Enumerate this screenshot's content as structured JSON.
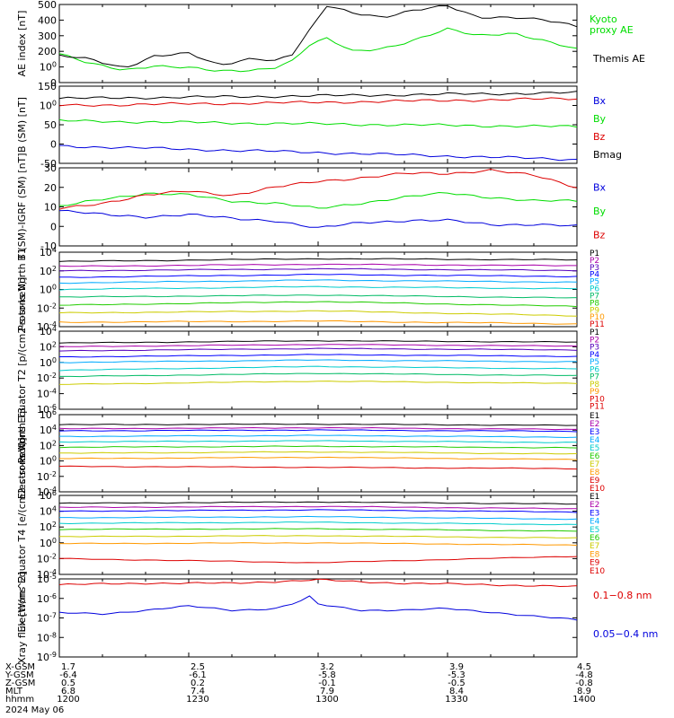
{
  "chart_data": [
    {
      "type": "line",
      "ylabel": "AE index [nT]",
      "ylim": [
        0,
        500
      ],
      "yticks": [
        "0",
        "100",
        "200",
        "300",
        "400",
        "500"
      ],
      "series": [
        {
          "name": "Kyoto proxy AE",
          "color": "#00dd00",
          "x": [
            "12:00",
            "12:07",
            "12:15",
            "12:22",
            "12:30",
            "12:37",
            "12:45",
            "12:50",
            "12:54",
            "12:58",
            "13:02",
            "13:08",
            "13:15",
            "13:22",
            "13:30",
            "13:37",
            "13:45",
            "13:52",
            "14:00"
          ],
          "values": [
            185,
            120,
            80,
            110,
            95,
            70,
            80,
            100,
            140,
            240,
            280,
            200,
            220,
            270,
            340,
            300,
            320,
            270,
            210
          ]
        },
        {
          "name": "Themis AE",
          "color": "#000000",
          "x": [
            "12:00",
            "12:07",
            "12:15",
            "12:22",
            "12:30",
            "12:37",
            "12:45",
            "12:50",
            "12:54",
            "12:58",
            "13:02",
            "13:08",
            "13:15",
            "13:22",
            "13:30",
            "13:37",
            "13:45",
            "13:52",
            "14:00"
          ],
          "values": [
            170,
            150,
            95,
            170,
            185,
            110,
            160,
            140,
            180,
            330,
            490,
            450,
            420,
            460,
            490,
            420,
            420,
            400,
            360
          ]
        }
      ]
    },
    {
      "type": "line",
      "ylabel": "B (SM) [nT]",
      "ylim": [
        -50,
        150
      ],
      "yticks": [
        "-50",
        "0",
        "50",
        "100",
        "150"
      ],
      "series": [
        {
          "name": "Bx",
          "color": "#000000",
          "x": [
            "12:00",
            "13:00",
            "14:00"
          ],
          "values": [
            118,
            125,
            133
          ]
        },
        {
          "name": "By",
          "color": "#00dd00",
          "x": [
            "12:00",
            "13:00",
            "14:00"
          ],
          "values": [
            60,
            52,
            45
          ]
        },
        {
          "name": "Bz",
          "color": "#dd0000",
          "x": [
            "12:00",
            "13:00",
            "14:00"
          ],
          "values": [
            100,
            108,
            118
          ]
        },
        {
          "name": "Bmag",
          "color": "#0000dd",
          "x": [
            "12:00",
            "13:00",
            "14:00"
          ],
          "values": [
            -5,
            -22,
            -40
          ]
        }
      ]
    },
    {
      "type": "line",
      "ylabel": "B (SM)-IGRF (SM) [nT]",
      "ylim": [
        -10,
        30
      ],
      "yticks": [
        "-10",
        "0",
        "10",
        "20",
        "30"
      ],
      "series": [
        {
          "name": "Bx",
          "color": "#0000dd",
          "x": [
            "12:00",
            "12:10",
            "12:20",
            "12:30",
            "12:40",
            "12:50",
            "13:00",
            "13:10",
            "13:20",
            "13:30",
            "13:40",
            "13:50",
            "14:00"
          ],
          "values": [
            8,
            6,
            5,
            6,
            4,
            3,
            -1,
            2,
            3,
            3,
            1,
            1,
            0
          ]
        },
        {
          "name": "By",
          "color": "#00dd00",
          "x": [
            "12:00",
            "12:10",
            "12:20",
            "12:30",
            "12:40",
            "12:50",
            "13:00",
            "13:10",
            "13:20",
            "13:30",
            "13:40",
            "13:50",
            "14:00"
          ],
          "values": [
            10,
            14,
            17,
            16,
            13,
            12,
            9,
            12,
            15,
            17,
            15,
            13,
            13
          ]
        },
        {
          "name": "Bz",
          "color": "#dd0000",
          "x": [
            "12:00",
            "12:10",
            "12:20",
            "12:30",
            "12:40",
            "12:50",
            "13:00",
            "13:10",
            "13:20",
            "13:30",
            "13:40",
            "13:50",
            "14:00"
          ],
          "values": [
            9,
            12,
            16,
            18,
            16,
            20,
            23,
            25,
            27,
            27,
            29,
            26,
            20
          ]
        }
      ]
    },
    {
      "type": "line",
      "ylabel": "Protons North T1",
      "yscale": "log",
      "ylim": [
        0.0001,
        10000
      ],
      "yticks": [
        "10-4",
        "10-2",
        "100",
        "102",
        "104"
      ],
      "series": [
        {
          "name": "P1",
          "color": "#000000",
          "values": [
            1000,
            2000,
            1500
          ]
        },
        {
          "name": "P2",
          "color": "#aa00aa",
          "values": [
            300,
            500,
            350
          ]
        },
        {
          "name": "P3",
          "color": "#5500bb",
          "values": [
            100,
            160,
            110
          ]
        },
        {
          "name": "P4",
          "color": "#0000ff",
          "values": [
            20,
            40,
            25
          ]
        },
        {
          "name": "P5",
          "color": "#00aaff",
          "values": [
            5,
            10,
            6
          ]
        },
        {
          "name": "P6",
          "color": "#00cccc",
          "values": [
            1,
            2,
            1.2
          ]
        },
        {
          "name": "P7",
          "color": "#00bb66",
          "values": [
            0.15,
            0.25,
            0.12
          ]
        },
        {
          "name": "P8",
          "color": "#22cc00",
          "values": [
            0.02,
            0.05,
            0.015
          ]
        },
        {
          "name": "P9",
          "color": "#cccc00",
          "values": [
            0.003,
            0.005,
            0.0015
          ]
        },
        {
          "name": "P10",
          "color": "#ff9900",
          "values": [
            0.0003,
            0.0004,
            0.0002
          ]
        },
        {
          "name": "P11",
          "color": "#dd0000",
          "values": []
        }
      ]
    },
    {
      "type": "line",
      "ylabel": "Protons Equator T2 [p/(cm2-s-sr-keV)]",
      "yscale": "log",
      "ylim": [
        1e-06,
        10000
      ],
      "yticks": [
        "10-6",
        "10-4",
        "10-2",
        "100",
        "102",
        "104"
      ],
      "series": [
        {
          "name": "P1",
          "color": "#000000",
          "values": [
            300,
            600,
            400
          ]
        },
        {
          "name": "P2",
          "color": "#aa00aa",
          "values": [
            100,
            200,
            120
          ]
        },
        {
          "name": "P3",
          "color": "#5500bb",
          "values": [
            30,
            60,
            40
          ]
        },
        {
          "name": "P4",
          "color": "#0000ff",
          "values": [
            5,
            10,
            6
          ]
        },
        {
          "name": "P5",
          "color": "#00aaff",
          "values": [
            1,
            2,
            1.2
          ]
        },
        {
          "name": "P6",
          "color": "#00cccc",
          "values": [
            0.1,
            0.3,
            0.15
          ]
        },
        {
          "name": "P7",
          "color": "#00bb66",
          "values": [
            0.015,
            0.04,
            0.02
          ]
        },
        {
          "name": "P8",
          "color": "#cccc00",
          "values": [
            0.0015,
            0.004,
            0.002
          ]
        },
        {
          "name": "P9",
          "color": "#ff9900",
          "values": []
        },
        {
          "name": "P10",
          "color": "#dd0000",
          "values": []
        },
        {
          "name": "P11",
          "color": "#dd0000",
          "values": []
        }
      ]
    },
    {
      "type": "line",
      "ylabel": "Electrons North T3",
      "yscale": "log",
      "ylim": [
        0.0001,
        1000000
      ],
      "yticks": [
        "10-4",
        "10-2",
        "100",
        "102",
        "104",
        "106"
      ],
      "series": [
        {
          "name": "E1",
          "color": "#000000",
          "values": [
            50000,
            60000,
            40000
          ]
        },
        {
          "name": "E2",
          "color": "#aa00aa",
          "values": [
            15000,
            20000,
            12000
          ]
        },
        {
          "name": "E3",
          "color": "#0000ff",
          "values": [
            8000,
            10000,
            7000
          ]
        },
        {
          "name": "E4",
          "color": "#00aaff",
          "values": [
            1500,
            2000,
            1200
          ]
        },
        {
          "name": "E5",
          "color": "#00cccc",
          "values": [
            300,
            400,
            250
          ]
        },
        {
          "name": "E6",
          "color": "#22cc00",
          "values": [
            60,
            80,
            50
          ]
        },
        {
          "name": "E7",
          "color": "#cccc00",
          "values": [
            10,
            15,
            8
          ]
        },
        {
          "name": "E8",
          "color": "#ff9900",
          "values": [
            2,
            3,
            1.5
          ]
        },
        {
          "name": "E9",
          "color": "#dd0000",
          "values": [
            0.2,
            0.15,
            0.1
          ]
        },
        {
          "name": "E10",
          "color": "#dd0000",
          "values": []
        }
      ]
    },
    {
      "type": "line",
      "ylabel": "Electrons Equator T4 [e/(cm2-s-sr-keV)]",
      "yscale": "log",
      "ylim": [
        0.0001,
        1000000
      ],
      "yticks": [
        "10-4",
        "10-2",
        "100",
        "102",
        "104",
        "106"
      ],
      "series": [
        {
          "name": "E1",
          "color": "#000000",
          "values": [
            100000,
            150000,
            80000
          ]
        },
        {
          "name": "E2",
          "color": "#aa00aa",
          "values": [
            30000,
            40000,
            20000
          ]
        },
        {
          "name": "E3",
          "color": "#0000ff",
          "values": [
            10000,
            15000,
            8000
          ]
        },
        {
          "name": "E4",
          "color": "#00aaff",
          "values": [
            1500,
            2000,
            1000
          ]
        },
        {
          "name": "E5",
          "color": "#00cccc",
          "values": [
            300,
            400,
            200
          ]
        },
        {
          "name": "E6",
          "color": "#22cc00",
          "values": [
            50,
            60,
            30
          ]
        },
        {
          "name": "E7",
          "color": "#cccc00",
          "values": [
            6,
            8,
            4
          ]
        },
        {
          "name": "E8",
          "color": "#ff9900",
          "values": [
            0.8,
            1,
            0.5
          ]
        },
        {
          "name": "E9",
          "color": "#dd0000",
          "values": [
            0.01,
            0.003,
            0.02
          ]
        },
        {
          "name": "E10",
          "color": "#dd0000",
          "values": []
        }
      ]
    },
    {
      "type": "line",
      "ylabel": "Xray flux [W/m^2]",
      "yscale": "log",
      "ylim": [
        1e-09,
        1e-05
      ],
      "yticks": [
        "10-9",
        "10-8",
        "10-7",
        "10-6",
        "10-5"
      ],
      "series": [
        {
          "name": "0.1-0.8 nm",
          "color": "#dd0000",
          "x": [
            "12:00",
            "12:20",
            "12:40",
            "12:55",
            "13:00",
            "13:10",
            "13:20",
            "13:30",
            "13:40",
            "13:50",
            "14:00"
          ],
          "values": [
            5e-06,
            6e-06,
            6e-06,
            8e-06,
            9e-06,
            7e-06,
            6e-06,
            5.5e-06,
            5e-06,
            4.5e-06,
            4e-06
          ]
        },
        {
          "name": "0.05-0.4 nm",
          "color": "#0000dd",
          "x": [
            "12:00",
            "12:10",
            "12:20",
            "12:30",
            "12:40",
            "12:50",
            "12:55",
            "12:58",
            "13:00",
            "13:10",
            "13:20",
            "13:30",
            "13:40",
            "13:50",
            "14:00"
          ],
          "values": [
            1.8e-07,
            1.6e-07,
            2.5e-07,
            4e-07,
            2.5e-07,
            3e-07,
            6e-07,
            1.2e-06,
            5e-07,
            2.5e-07,
            2.5e-07,
            3e-07,
            2e-07,
            1.2e-07,
            8e-08
          ]
        }
      ]
    }
  ],
  "extra_labels": {
    "kyoto_line1": "Kyoto",
    "kyoto_line2": "proxy AE",
    "themis": "Themis AE",
    "xray_red": "0.1−0.8 nm",
    "xray_blue": "0.05−0.4 nm"
  },
  "ephemeris": {
    "row_labels": [
      "X-GSM",
      "Y-GSM",
      "Z-GSM",
      "MLT",
      "hhmm"
    ],
    "date": "2024 May 06",
    "columns": [
      {
        "values": [
          "1.7",
          "-6.4",
          "0.5",
          "6.8",
          "1200"
        ]
      },
      {
        "values": [
          "2.5",
          "-6.1",
          "0.2",
          "7.4",
          "1230"
        ]
      },
      {
        "values": [
          "3.2",
          "-5.8",
          "-0.1",
          "7.9",
          "1300"
        ]
      },
      {
        "values": [
          "3.9",
          "-5.3",
          "-0.5",
          "8.4",
          "1330"
        ]
      },
      {
        "values": [
          "4.5",
          "-4.8",
          "-0.8",
          "8.9",
          "1400"
        ]
      }
    ]
  }
}
